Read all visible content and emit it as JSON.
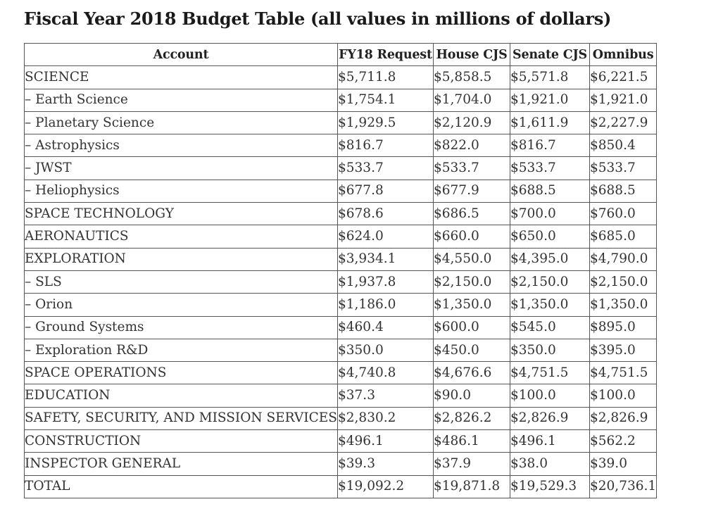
{
  "title": "Fiscal Year 2018 Budget Table (all values in millions of dollars)",
  "table": {
    "headers": [
      "Account",
      "FY18 Request",
      "House CJS",
      "Senate CJS",
      "Omnibus"
    ],
    "rows": [
      {
        "account": "SCIENCE",
        "values": [
          "$5,711.8",
          "$5,858.5",
          "$5,571.8",
          "$6,221.5"
        ]
      },
      {
        "account": "– Earth Science",
        "values": [
          "$1,754.1",
          "$1,704.0",
          "$1,921.0",
          "$1,921.0"
        ]
      },
      {
        "account": "– Planetary Science",
        "values": [
          "$1,929.5",
          "$2,120.9",
          "$1,611.9",
          "$2,227.9"
        ]
      },
      {
        "account": "– Astrophysics",
        "values": [
          "$816.7",
          "$822.0",
          "$816.7",
          "$850.4"
        ]
      },
      {
        "account": "– JWST",
        "values": [
          "$533.7",
          "$533.7",
          "$533.7",
          "$533.7"
        ]
      },
      {
        "account": "– Heliophysics",
        "values": [
          "$677.8",
          "$677.9",
          "$688.5",
          "$688.5"
        ]
      },
      {
        "account": "SPACE TECHNOLOGY",
        "values": [
          "$678.6",
          "$686.5",
          "$700.0",
          "$760.0"
        ]
      },
      {
        "account": "AERONAUTICS",
        "values": [
          "$624.0",
          "$660.0",
          "$650.0",
          "$685.0"
        ]
      },
      {
        "account": "EXPLORATION",
        "values": [
          "$3,934.1",
          "$4,550.0",
          "$4,395.0",
          "$4,790.0"
        ]
      },
      {
        "account": "– SLS",
        "values": [
          "$1,937.8",
          "$2,150.0",
          "$2,150.0",
          "$2,150.0"
        ]
      },
      {
        "account": "– Orion",
        "values": [
          "$1,186.0",
          "$1,350.0",
          "$1,350.0",
          "$1,350.0"
        ]
      },
      {
        "account": "– Ground Systems",
        "values": [
          "$460.4",
          "$600.0",
          "$545.0",
          "$895.0"
        ]
      },
      {
        "account": "– Exploration R&D",
        "values": [
          "$350.0",
          "$450.0",
          "$350.0",
          "$395.0"
        ]
      },
      {
        "account": "SPACE OPERATIONS",
        "values": [
          "$4,740.8",
          "$4,676.6",
          "$4,751.5",
          "$4,751.5"
        ]
      },
      {
        "account": "EDUCATION",
        "values": [
          "$37.3",
          "$90.0",
          "$100.0",
          "$100.0"
        ]
      },
      {
        "account": "SAFETY, SECURITY, AND MISSION SERVICES",
        "values": [
          "$2,830.2",
          "$2,826.2",
          "$2,826.9",
          "$2,826.9"
        ]
      },
      {
        "account": "CONSTRUCTION",
        "values": [
          "$496.1",
          "$486.1",
          "$496.1",
          "$562.2"
        ]
      },
      {
        "account": "INSPECTOR GENERAL",
        "values": [
          "$39.3",
          "$37.9",
          "$38.0",
          "$39.0"
        ]
      },
      {
        "account": "TOTAL",
        "values": [
          "$19,092.2",
          "$19,871.8",
          "$19,529.3",
          "$20,736.1"
        ]
      }
    ]
  }
}
